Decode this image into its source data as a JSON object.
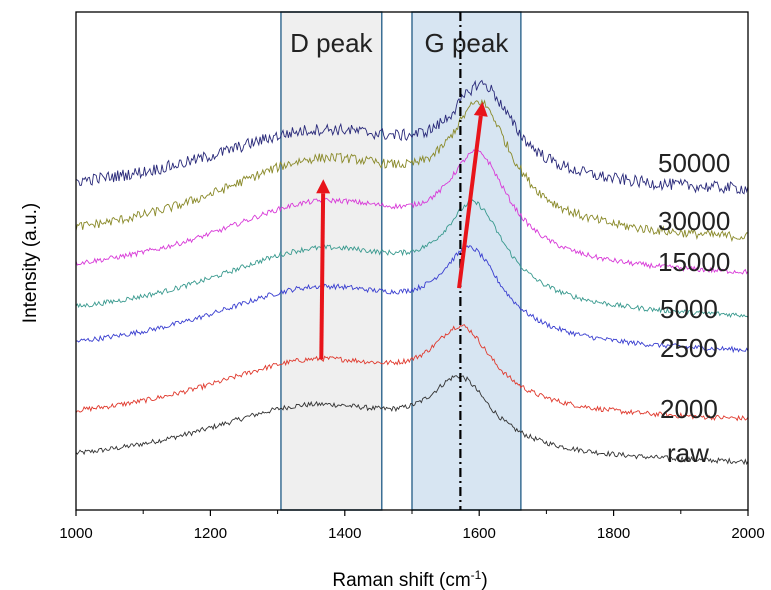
{
  "chart_data": {
    "type": "line",
    "xlabel": "Raman shift (cm",
    "xlabel_sup": "-1",
    "xlabel_tail": ")",
    "ylabel": "Intensity (a.u.)",
    "xlim": [
      1000,
      2000
    ],
    "xticks": [
      1000,
      1200,
      1400,
      1600,
      1800,
      2000
    ],
    "grid": false,
    "shaded_regions": [
      {
        "label": "D peak",
        "x0": 1305,
        "x1": 1455,
        "color": "#efefef"
      },
      {
        "label": "G peak",
        "x0": 1500,
        "x1": 1662,
        "color": "#d7e5f2"
      }
    ],
    "reference_line_x": 1572,
    "series": [
      {
        "name": "raw",
        "color": "#333333",
        "offset": 0.0,
        "d_height": 0.72,
        "d_center": 1350,
        "g_height": 1.0,
        "g_center": 1572
      },
      {
        "name": "2000",
        "color": "#e03a2e",
        "offset": 0.5,
        "d_height": 0.75,
        "d_center": 1355,
        "g_height": 1.1,
        "g_center": 1575
      },
      {
        "name": "2500",
        "color": "#3a3fd0",
        "offset": 1.3,
        "d_height": 0.8,
        "d_center": 1358,
        "g_height": 1.25,
        "g_center": 1588
      },
      {
        "name": "5000",
        "color": "#3a9a8f",
        "offset": 1.7,
        "d_height": 0.85,
        "d_center": 1362,
        "g_height": 1.4,
        "g_center": 1593
      },
      {
        "name": "15000",
        "color": "#d83ad8",
        "offset": 2.2,
        "d_height": 0.9,
        "d_center": 1365,
        "g_height": 1.5,
        "g_center": 1598
      },
      {
        "name": "30000",
        "color": "#8a8a2a",
        "offset": 2.6,
        "d_height": 1.0,
        "d_center": 1365,
        "g_height": 1.7,
        "g_center": 1602
      },
      {
        "name": "50000",
        "color": "#2a2a7a",
        "offset": 3.2,
        "d_height": 0.75,
        "d_center": 1360,
        "g_height": 1.35,
        "g_center": 1605
      }
    ],
    "arrows": [
      {
        "x0": 1365,
        "y0": 1.3,
        "x1": 1368,
        "y1": 3.42,
        "color": "#e8141a"
      },
      {
        "x0": 1570,
        "y0": 2.14,
        "x1": 1605,
        "y1": 4.33,
        "color": "#e8141a"
      }
    ]
  }
}
